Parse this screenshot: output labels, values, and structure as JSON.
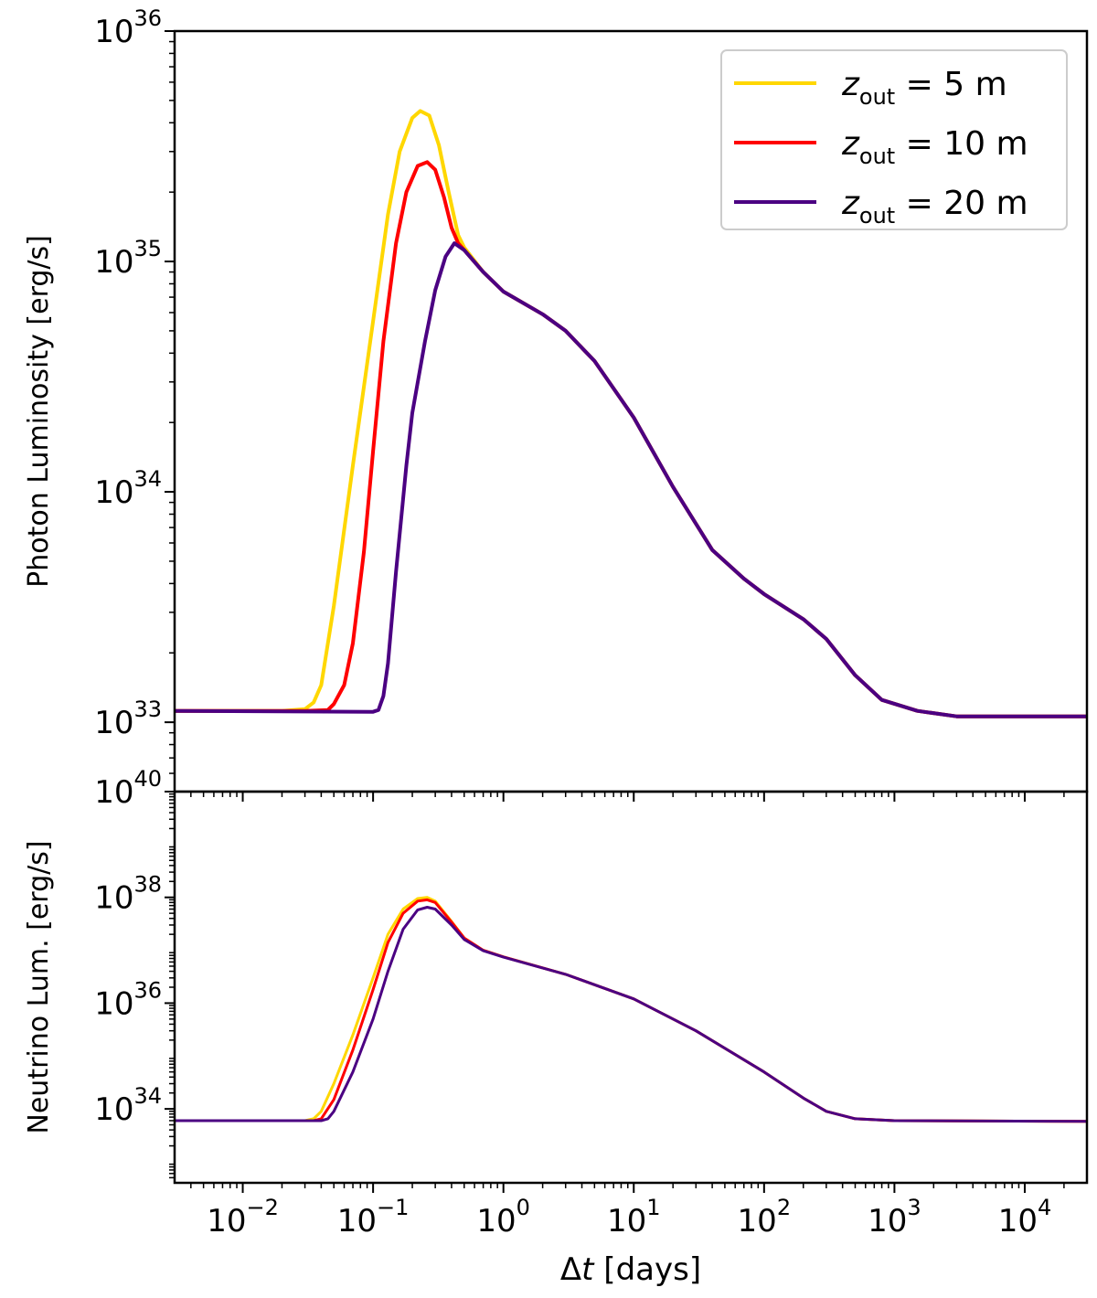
{
  "chart_data": [
    {
      "id": "photon",
      "type": "line",
      "scale": "log-log",
      "ylabel": "Photon Luminosity [erg/s]",
      "xlim": [
        0.003,
        30000
      ],
      "ylim": [
        5e+32,
        1e+36
      ],
      "yticks": [
        {
          "value": 1e+33,
          "base": "10",
          "exp": "33"
        },
        {
          "value": 1e+34,
          "base": "10",
          "exp": "34"
        },
        {
          "value": 1e+35,
          "base": "10",
          "exp": "35"
        },
        {
          "value": 1e+36,
          "base": "10",
          "exp": "36"
        }
      ],
      "series": [
        {
          "name": "z_out = 5 m",
          "color": "#ffd700",
          "width": 4,
          "points": [
            [
              0.003,
              1.12e+33
            ],
            [
              0.02,
              1.12e+33
            ],
            [
              0.03,
              1.14e+33
            ],
            [
              0.035,
              1.22e+33
            ],
            [
              0.04,
              1.45e+33
            ],
            [
              0.05,
              3.2e+33
            ],
            [
              0.07,
              1.3e+34
            ],
            [
              0.1,
              5.5e+34
            ],
            [
              0.13,
              1.6e+35
            ],
            [
              0.16,
              3e+35
            ],
            [
              0.2,
              4.2e+35
            ],
            [
              0.23,
              4.5e+35
            ],
            [
              0.27,
              4.3e+35
            ],
            [
              0.32,
              3.2e+35
            ],
            [
              0.38,
              2e+35
            ],
            [
              0.45,
              1.3e+35
            ],
            [
              0.5,
              1.15e+35
            ],
            [
              0.7,
              9e+34
            ],
            [
              1,
              7.4e+34
            ],
            [
              2,
              5.9e+34
            ],
            [
              3,
              5e+34
            ],
            [
              5,
              3.7e+34
            ],
            [
              10,
              2.1e+34
            ],
            [
              20,
              1.05e+34
            ],
            [
              40,
              5.6e+33
            ],
            [
              70,
              4.2e+33
            ],
            [
              100,
              3.6e+33
            ],
            [
              200,
              2.8e+33
            ],
            [
              300,
              2.3e+33
            ],
            [
              500,
              1.6e+33
            ],
            [
              800,
              1.25e+33
            ],
            [
              1500,
              1.12e+33
            ],
            [
              3000,
              1.06e+33
            ],
            [
              10000,
              1.06e+33
            ],
            [
              30000,
              1.06e+33
            ]
          ]
        },
        {
          "name": "z_out = 10 m",
          "color": "#ff0000",
          "width": 4,
          "points": [
            [
              0.003,
              1.12e+33
            ],
            [
              0.03,
              1.12e+33
            ],
            [
              0.045,
              1.13e+33
            ],
            [
              0.05,
              1.2e+33
            ],
            [
              0.06,
              1.45e+33
            ],
            [
              0.07,
              2.2e+33
            ],
            [
              0.085,
              5.5e+33
            ],
            [
              0.1,
              1.5e+34
            ],
            [
              0.12,
              4.5e+34
            ],
            [
              0.15,
              1.2e+35
            ],
            [
              0.18,
              2e+35
            ],
            [
              0.22,
              2.6e+35
            ],
            [
              0.26,
              2.7e+35
            ],
            [
              0.3,
              2.5e+35
            ],
            [
              0.35,
              1.9e+35
            ],
            [
              0.4,
              1.4e+35
            ],
            [
              0.45,
              1.2e+35
            ],
            [
              0.5,
              1.12e+35
            ],
            [
              0.7,
              9e+34
            ],
            [
              1,
              7.4e+34
            ],
            [
              2,
              5.9e+34
            ],
            [
              3,
              5e+34
            ],
            [
              5,
              3.7e+34
            ],
            [
              10,
              2.1e+34
            ],
            [
              20,
              1.05e+34
            ],
            [
              40,
              5.6e+33
            ],
            [
              70,
              4.2e+33
            ],
            [
              100,
              3.6e+33
            ],
            [
              200,
              2.8e+33
            ],
            [
              300,
              2.3e+33
            ],
            [
              500,
              1.6e+33
            ],
            [
              800,
              1.25e+33
            ],
            [
              1500,
              1.12e+33
            ],
            [
              3000,
              1.06e+33
            ],
            [
              10000,
              1.06e+33
            ],
            [
              30000,
              1.06e+33
            ]
          ]
        },
        {
          "name": "z_out = 20 m",
          "color": "#4b0082",
          "width": 4,
          "points": [
            [
              0.003,
              1.12e+33
            ],
            [
              0.1,
              1.11e+33
            ],
            [
              0.11,
              1.13e+33
            ],
            [
              0.12,
              1.3e+33
            ],
            [
              0.13,
              1.8e+33
            ],
            [
              0.15,
              4.5e+33
            ],
            [
              0.18,
              1.3e+34
            ],
            [
              0.2,
              2.2e+34
            ],
            [
              0.25,
              4.5e+34
            ],
            [
              0.3,
              7.5e+34
            ],
            [
              0.36,
              1.05e+35
            ],
            [
              0.42,
              1.2e+35
            ],
            [
              0.5,
              1.12e+35
            ],
            [
              0.7,
              9e+34
            ],
            [
              1,
              7.4e+34
            ],
            [
              2,
              5.9e+34
            ],
            [
              3,
              5e+34
            ],
            [
              5,
              3.7e+34
            ],
            [
              10,
              2.1e+34
            ],
            [
              20,
              1.05e+34
            ],
            [
              40,
              5.6e+33
            ],
            [
              70,
              4.2e+33
            ],
            [
              100,
              3.6e+33
            ],
            [
              200,
              2.8e+33
            ],
            [
              300,
              2.3e+33
            ],
            [
              500,
              1.6e+33
            ],
            [
              800,
              1.25e+33
            ],
            [
              1500,
              1.12e+33
            ],
            [
              3000,
              1.06e+33
            ],
            [
              10000,
              1.06e+33
            ],
            [
              30000,
              1.06e+33
            ]
          ]
        }
      ],
      "legend": {
        "position": "top-right",
        "entries": [
          {
            "color": "#ffd700",
            "var": "z",
            "sub": "out",
            "rest": " = 5 m"
          },
          {
            "color": "#ff0000",
            "var": "z",
            "sub": "out",
            "rest": " = 10 m"
          },
          {
            "color": "#4b0082",
            "var": "z",
            "sub": "out",
            "rest": " = 20 m"
          }
        ]
      }
    },
    {
      "id": "neutrino",
      "type": "line",
      "scale": "log-log",
      "ylabel": "Neutrino Lum. [erg/s]",
      "xlim": [
        0.003,
        30000
      ],
      "ylim": [
        4e+32,
        1e+40
      ],
      "yticks": [
        {
          "value": 1e+34,
          "base": "10",
          "exp": "34"
        },
        {
          "value": 1e+36,
          "base": "10",
          "exp": "36"
        },
        {
          "value": 1e+38,
          "base": "10",
          "exp": "38"
        },
        {
          "value": 1e+40,
          "base": "10",
          "exp": "40"
        }
      ],
      "xticks": [
        {
          "value": 0.01,
          "base": "10",
          "exp": "−2"
        },
        {
          "value": 0.1,
          "base": "10",
          "exp": "−1"
        },
        {
          "value": 1,
          "base": "10",
          "exp": "0"
        },
        {
          "value": 10,
          "base": "10",
          "exp": "1"
        },
        {
          "value": 100,
          "base": "10",
          "exp": "2"
        },
        {
          "value": 1000,
          "base": "10",
          "exp": "3"
        },
        {
          "value": 10000,
          "base": "10",
          "exp": "4"
        }
      ],
      "xlabel": {
        "prefix": "Δ",
        "var": "t",
        "suffix": " [days]"
      },
      "series": [
        {
          "name": "z_out = 5 m",
          "color": "#ffd700",
          "width": 3,
          "points": [
            [
              0.003,
              6e+33
            ],
            [
              0.03,
              6e+33
            ],
            [
              0.035,
              6.5e+33
            ],
            [
              0.04,
              9e+33
            ],
            [
              0.05,
              3e+34
            ],
            [
              0.07,
              2.5e+35
            ],
            [
              0.1,
              3e+36
            ],
            [
              0.13,
              2e+37
            ],
            [
              0.17,
              6e+37
            ],
            [
              0.22,
              9.5e+37
            ],
            [
              0.26,
              1e+38
            ],
            [
              0.3,
              8.5e+37
            ],
            [
              0.4,
              3.5e+37
            ],
            [
              0.5,
              1.7e+37
            ],
            [
              0.7,
              1e+37
            ],
            [
              1,
              7.5e+36
            ],
            [
              3,
              3.5e+36
            ],
            [
              10,
              1.2e+36
            ],
            [
              30,
              3e+35
            ],
            [
              100,
              5e+34
            ],
            [
              200,
              1.6e+34
            ],
            [
              300,
              9e+33
            ],
            [
              500,
              6.5e+33
            ],
            [
              1000,
              6e+33
            ],
            [
              30000,
              5.8e+33
            ]
          ]
        },
        {
          "name": "z_out = 10 m",
          "color": "#ff0000",
          "width": 3,
          "points": [
            [
              0.003,
              6e+33
            ],
            [
              0.035,
              6e+33
            ],
            [
              0.04,
              6.5e+33
            ],
            [
              0.05,
              1.5e+34
            ],
            [
              0.07,
              1.3e+35
            ],
            [
              0.1,
              1.8e+36
            ],
            [
              0.13,
              1.4e+37
            ],
            [
              0.17,
              5e+37
            ],
            [
              0.22,
              8.5e+37
            ],
            [
              0.26,
              9e+37
            ],
            [
              0.3,
              8e+37
            ],
            [
              0.4,
              3.4e+37
            ],
            [
              0.5,
              1.7e+37
            ],
            [
              0.7,
              1e+37
            ],
            [
              1,
              7.5e+36
            ],
            [
              3,
              3.5e+36
            ],
            [
              10,
              1.2e+36
            ],
            [
              30,
              3e+35
            ],
            [
              100,
              5e+34
            ],
            [
              200,
              1.6e+34
            ],
            [
              300,
              9e+33
            ],
            [
              500,
              6.5e+33
            ],
            [
              1000,
              6e+33
            ],
            [
              30000,
              5.8e+33
            ]
          ]
        },
        {
          "name": "z_out = 20 m",
          "color": "#4b0082",
          "width": 3,
          "points": [
            [
              0.003,
              6e+33
            ],
            [
              0.04,
              6e+33
            ],
            [
              0.045,
              6.5e+33
            ],
            [
              0.05,
              9e+33
            ],
            [
              0.07,
              5e+34
            ],
            [
              0.1,
              5e+35
            ],
            [
              0.13,
              4e+36
            ],
            [
              0.17,
              2.5e+37
            ],
            [
              0.22,
              5.8e+37
            ],
            [
              0.26,
              6.5e+37
            ],
            [
              0.3,
              6e+37
            ],
            [
              0.4,
              3e+37
            ],
            [
              0.5,
              1.6e+37
            ],
            [
              0.7,
              9.8e+36
            ],
            [
              1,
              7.4e+36
            ],
            [
              3,
              3.5e+36
            ],
            [
              10,
              1.2e+36
            ],
            [
              30,
              3e+35
            ],
            [
              100,
              5e+34
            ],
            [
              200,
              1.6e+34
            ],
            [
              300,
              9e+33
            ],
            [
              500,
              6.5e+33
            ],
            [
              1000,
              6e+33
            ],
            [
              30000,
              5.8e+33
            ]
          ]
        }
      ]
    }
  ]
}
